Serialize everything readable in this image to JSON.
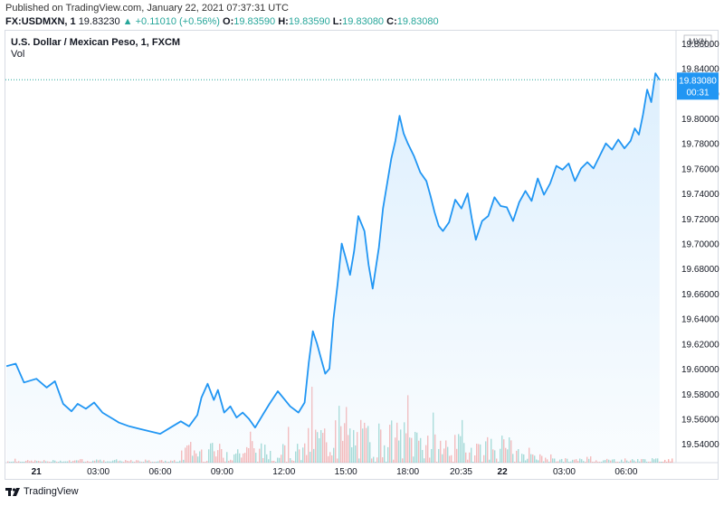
{
  "header": {
    "published": "Published on TradingView.com, January 22, 2021 07:37:31 UTC",
    "symbol": "FX:USDMXN, 1",
    "last": "19.83230",
    "change_arrow": "▲",
    "change": "+0.11010 (+0.56%)",
    "o_label": "O:",
    "o": "19.83590",
    "h_label": "H:",
    "h": "19.83590",
    "l_label": "L:",
    "l": "19.83080",
    "c_label": "C:",
    "c": "19.83080"
  },
  "chart_title": "U.S. Dollar / Mexican Peso, 1, FXCM",
  "volume_label": "Vol",
  "currency_tag": "MXN",
  "footer": {
    "brand": "TradingView"
  },
  "colors": {
    "line": "#2196f3",
    "fill": "#dbeefd",
    "up": "#26a69a",
    "down": "#ef5350"
  },
  "chart_data": {
    "type": "area",
    "title": "U.S. Dollar / Mexican Peso, 1, FXCM",
    "xlabel": "",
    "ylabel": "",
    "ylim": [
      19.525,
      19.87
    ],
    "x_ticks": [
      "21",
      "03:00",
      "06:00",
      "09:00",
      "12:00",
      "15:00",
      "18:00",
      "20:35",
      "22",
      "03:00",
      "06:00"
    ],
    "x_tick_pos": [
      0,
      3,
      6,
      9,
      12,
      15,
      18,
      20.583,
      22.583,
      25.583,
      28.583
    ],
    "x_range": [
      -1.5,
      31
    ],
    "y_ticks": [
      "19.86000",
      "19.84000",
      "19.82000",
      "19.80000",
      "19.78000",
      "19.76000",
      "19.74000",
      "19.72000",
      "19.70000",
      "19.68000",
      "19.66000",
      "19.64000",
      "19.62000",
      "19.60000",
      "19.58000",
      "19.56000",
      "19.54000"
    ],
    "last_price_label": "19.83080",
    "last_price": 19.8308,
    "countdown_label": "00:31",
    "series": [
      {
        "points": [
          [
            -1.45,
            19.602
          ],
          [
            -1.0,
            19.604
          ],
          [
            -0.6,
            19.589
          ],
          [
            0.0,
            19.592
          ],
          [
            0.5,
            19.585
          ],
          [
            0.9,
            19.59
          ],
          [
            1.3,
            19.572
          ],
          [
            1.7,
            19.566
          ],
          [
            2.0,
            19.572
          ],
          [
            2.4,
            19.568
          ],
          [
            2.8,
            19.573
          ],
          [
            3.2,
            19.565
          ],
          [
            3.7,
            19.56
          ],
          [
            4.0,
            19.557
          ],
          [
            4.5,
            19.554
          ],
          [
            5.0,
            19.552
          ],
          [
            5.5,
            19.55
          ],
          [
            6.0,
            19.548
          ],
          [
            6.5,
            19.553
          ],
          [
            7.0,
            19.558
          ],
          [
            7.4,
            19.554
          ],
          [
            7.8,
            19.563
          ],
          [
            8.0,
            19.577
          ],
          [
            8.3,
            19.588
          ],
          [
            8.6,
            19.575
          ],
          [
            8.8,
            19.583
          ],
          [
            9.1,
            19.565
          ],
          [
            9.4,
            19.57
          ],
          [
            9.7,
            19.561
          ],
          [
            10.0,
            19.565
          ],
          [
            10.3,
            19.56
          ],
          [
            10.6,
            19.553
          ],
          [
            11.0,
            19.564
          ],
          [
            11.3,
            19.572
          ],
          [
            11.7,
            19.582
          ],
          [
            12.0,
            19.576
          ],
          [
            12.3,
            19.57
          ],
          [
            12.7,
            19.565
          ],
          [
            13.0,
            19.573
          ],
          [
            13.2,
            19.605
          ],
          [
            13.4,
            19.63
          ],
          [
            13.6,
            19.62
          ],
          [
            13.8,
            19.608
          ],
          [
            14.0,
            19.596
          ],
          [
            14.2,
            19.6
          ],
          [
            14.4,
            19.64
          ],
          [
            14.6,
            19.668
          ],
          [
            14.8,
            19.7
          ],
          [
            15.0,
            19.688
          ],
          [
            15.2,
            19.675
          ],
          [
            15.4,
            19.694
          ],
          [
            15.6,
            19.722
          ],
          [
            15.9,
            19.71
          ],
          [
            16.1,
            19.683
          ],
          [
            16.3,
            19.664
          ],
          [
            16.6,
            19.697
          ],
          [
            16.8,
            19.728
          ],
          [
            17.0,
            19.748
          ],
          [
            17.2,
            19.768
          ],
          [
            17.4,
            19.782
          ],
          [
            17.6,
            19.802
          ],
          [
            17.8,
            19.788
          ],
          [
            18.0,
            19.78
          ],
          [
            18.3,
            19.77
          ],
          [
            18.6,
            19.757
          ],
          [
            18.9,
            19.75
          ],
          [
            19.1,
            19.738
          ],
          [
            19.3,
            19.725
          ],
          [
            19.5,
            19.714
          ],
          [
            19.7,
            19.71
          ],
          [
            20.0,
            19.717
          ],
          [
            20.3,
            19.735
          ],
          [
            20.6,
            19.728
          ],
          [
            20.9,
            19.74
          ],
          [
            21.1,
            19.72
          ],
          [
            21.3,
            19.703
          ],
          [
            21.6,
            19.718
          ],
          [
            21.9,
            19.722
          ],
          [
            22.2,
            19.737
          ],
          [
            22.5,
            19.73
          ],
          [
            22.8,
            19.729
          ],
          [
            23.1,
            19.718
          ],
          [
            23.4,
            19.733
          ],
          [
            23.7,
            19.742
          ],
          [
            24.0,
            19.734
          ],
          [
            24.3,
            19.752
          ],
          [
            24.6,
            19.739
          ],
          [
            24.9,
            19.748
          ],
          [
            25.2,
            19.762
          ],
          [
            25.5,
            19.759
          ],
          [
            25.8,
            19.764
          ],
          [
            26.1,
            19.75
          ],
          [
            26.4,
            19.76
          ],
          [
            26.7,
            19.765
          ],
          [
            27.0,
            19.76
          ],
          [
            27.3,
            19.77
          ],
          [
            27.6,
            19.78
          ],
          [
            27.9,
            19.775
          ],
          [
            28.2,
            19.783
          ],
          [
            28.5,
            19.776
          ],
          [
            28.8,
            19.782
          ],
          [
            29.0,
            19.792
          ],
          [
            29.2,
            19.787
          ],
          [
            29.4,
            19.803
          ],
          [
            29.6,
            19.823
          ],
          [
            29.8,
            19.813
          ],
          [
            30.0,
            19.836
          ],
          [
            30.2,
            19.8308
          ]
        ]
      }
    ]
  }
}
